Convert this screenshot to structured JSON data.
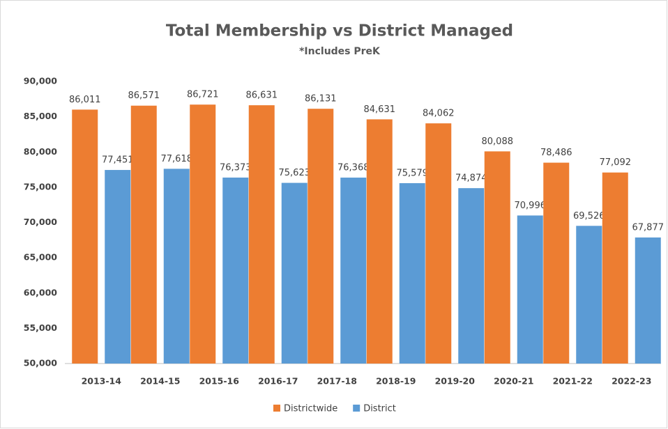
{
  "chart_data": {
    "type": "bar",
    "title": "Total Membership vs District Managed",
    "subtitle": "*Includes PreK",
    "categories": [
      "2013-14",
      "2014-15",
      "2015-16",
      "2016-17",
      "2017-18",
      "2018-19",
      "2019-20",
      "2020-21",
      "2021-22",
      "2022-23"
    ],
    "series": [
      {
        "name": "Districtwide",
        "color": "#ed7d31",
        "values": [
          86011,
          86571,
          86721,
          86631,
          86131,
          84631,
          84062,
          80088,
          78486,
          77092
        ],
        "value_labels": [
          "86,011",
          "86,571",
          "86,721",
          "86,631",
          "86,131",
          "84,631",
          "84,062",
          "80,088",
          "78,486",
          "77,092"
        ]
      },
      {
        "name": "District",
        "color": "#5b9bd5",
        "values": [
          77451,
          77618,
          76373,
          75623,
          76368,
          75579,
          74874,
          70996,
          69526,
          67877
        ],
        "value_labels": [
          "77,451",
          "77,618",
          "76,373",
          "75,623",
          "76,368",
          "75,579",
          "74,874",
          "70,996",
          "69,526",
          "67,877"
        ]
      }
    ],
    "ylim": [
      50000,
      90000
    ],
    "yticks": [
      {
        "value": 50000,
        "label": "50,000"
      },
      {
        "value": 55000,
        "label": "55,000"
      },
      {
        "value": 60000,
        "label": "60,000"
      },
      {
        "value": 65000,
        "label": "65,000"
      },
      {
        "value": 70000,
        "label": "70,000"
      },
      {
        "value": 75000,
        "label": "75,000"
      },
      {
        "value": 80000,
        "label": "80,000"
      },
      {
        "value": 85000,
        "label": "85,000"
      },
      {
        "value": 90000,
        "label": "90,000"
      }
    ],
    "grid": false,
    "legend": "bottom"
  }
}
